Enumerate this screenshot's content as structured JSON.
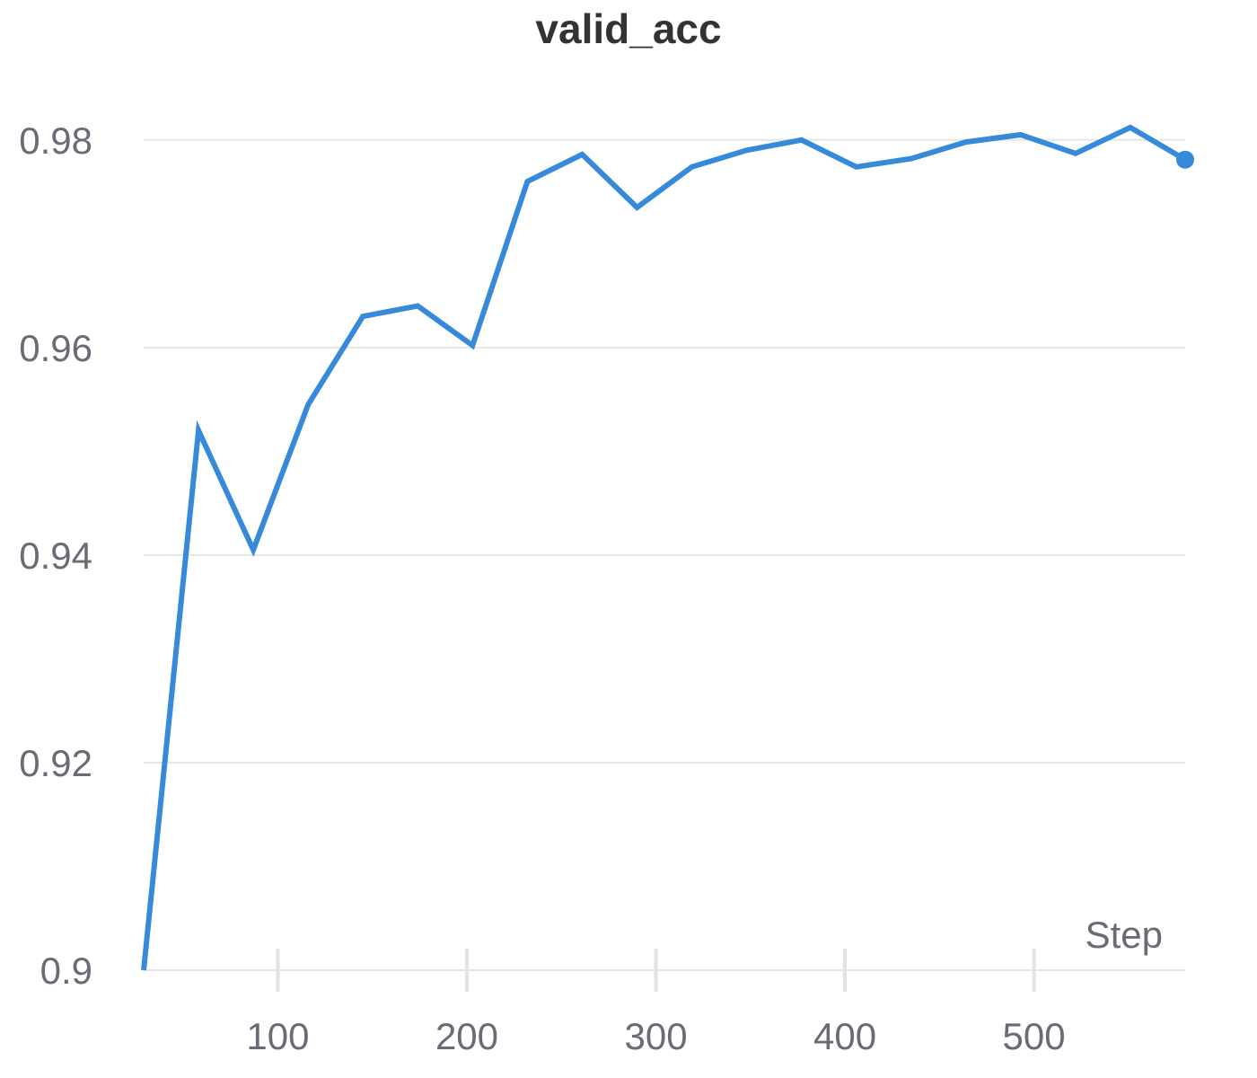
{
  "chart_data": {
    "type": "line",
    "title": "valid_acc",
    "xlabel": "Step",
    "ylabel": "",
    "xlim": [
      29,
      580
    ],
    "ylim": [
      0.9,
      0.985
    ],
    "xticks": [
      100,
      200,
      300,
      400,
      500
    ],
    "yticks": [
      0.9,
      0.92,
      0.94,
      0.96,
      0.98
    ],
    "ytick_labels": [
      "0.9",
      "0.92",
      "0.94",
      "0.96",
      "0.98"
    ],
    "grid": "horizontal",
    "legend": "none",
    "series": [
      {
        "color": "#368ad9",
        "x": [
          29,
          58,
          87,
          116,
          145,
          174,
          203,
          232,
          261,
          290,
          319,
          348,
          377,
          406,
          435,
          464,
          493,
          522,
          551,
          580
        ],
        "y": [
          0.9,
          0.952,
          0.9405,
          0.9545,
          0.963,
          0.964,
          0.9602,
          0.976,
          0.9786,
          0.9735,
          0.9774,
          0.979,
          0.98,
          0.9774,
          0.9782,
          0.9798,
          0.9805,
          0.9787,
          0.9812,
          0.9781
        ],
        "end_marker": true
      }
    ]
  }
}
